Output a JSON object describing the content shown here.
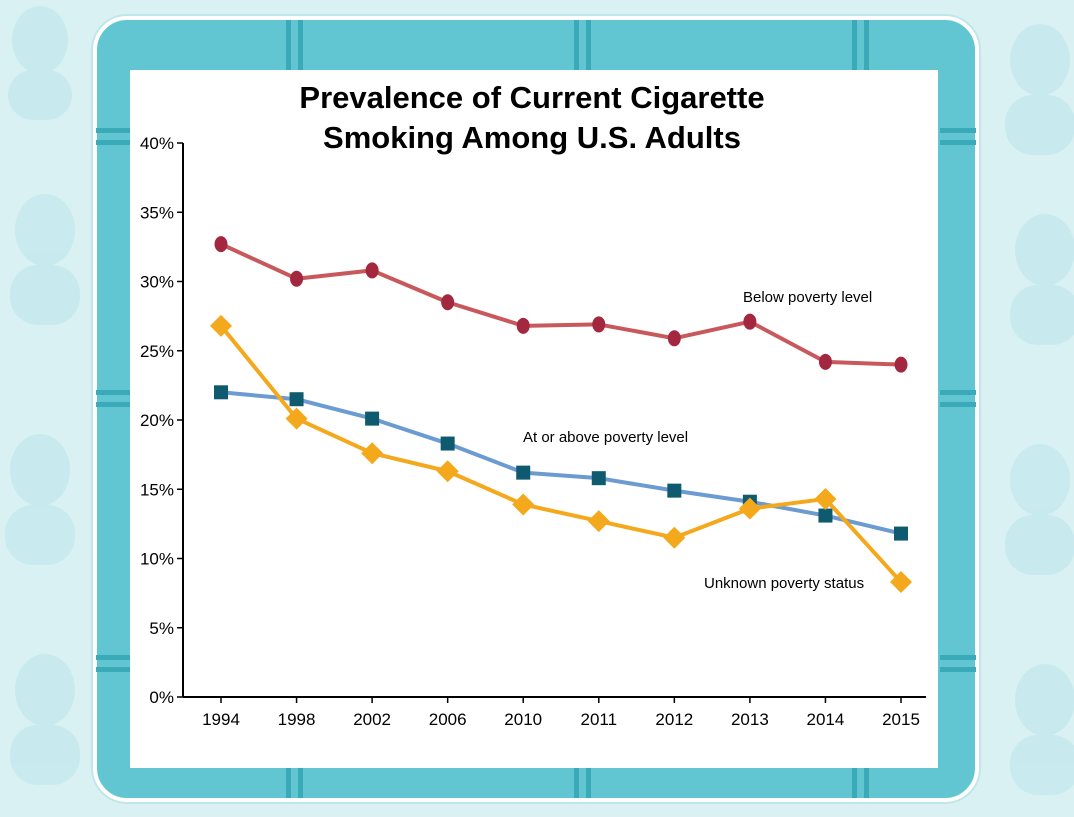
{
  "chart_data": {
    "type": "line",
    "title_lines": [
      "Prevalence of Current Cigarette",
      "Smoking Among U.S. Adults"
    ],
    "categories": [
      "1994",
      "1998",
      "2002",
      "2006",
      "2010",
      "2011",
      "2012",
      "2013",
      "2014",
      "2015"
    ],
    "y_ticks": [
      "0%",
      "5%",
      "10%",
      "15%",
      "20%",
      "25%",
      "30%",
      "35%",
      "40%"
    ],
    "ylim": [
      0,
      40
    ],
    "grid": false,
    "series": [
      {
        "name": "Below poverty level",
        "color": "#c8585c",
        "marker_color": "#a3283f",
        "marker": "circle",
        "values": [
          32.7,
          30.2,
          30.8,
          28.5,
          26.8,
          26.9,
          25.9,
          27.1,
          24.2,
          24.0
        ]
      },
      {
        "name": "At or above poverty level",
        "color": "#6b9bd1",
        "marker_color": "#0f5a6e",
        "marker": "square",
        "values": [
          22.0,
          21.5,
          20.1,
          18.3,
          16.2,
          15.8,
          14.9,
          14.1,
          13.1,
          11.8
        ]
      },
      {
        "name": "Unknown poverty status",
        "color": "#f4a81c",
        "marker_color": "#f4a81c",
        "marker": "diamond",
        "values": [
          26.8,
          20.1,
          17.6,
          16.3,
          13.9,
          12.7,
          11.5,
          13.6,
          14.3,
          8.3
        ]
      }
    ]
  }
}
